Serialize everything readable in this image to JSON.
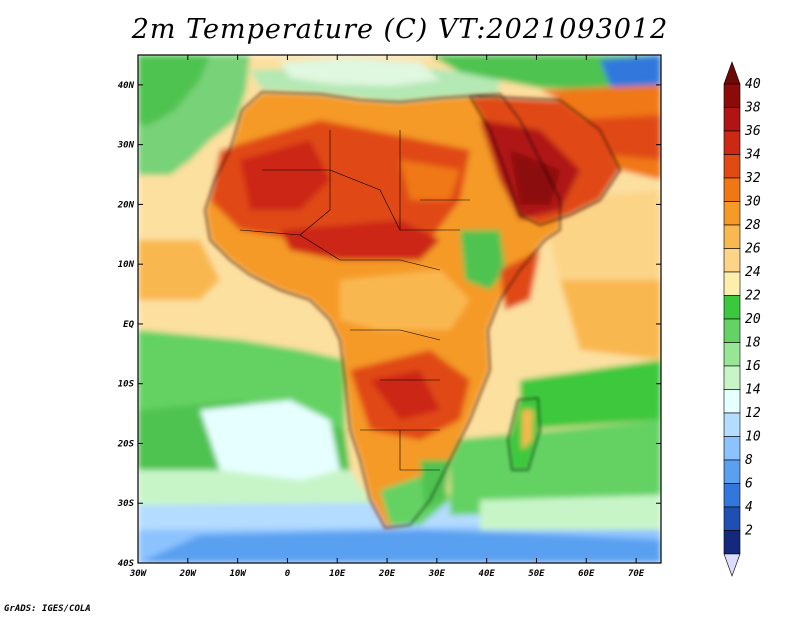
{
  "title": "2m Temperature (C) VT:2021093012",
  "footer": "GrADS: IGES/COLA",
  "map": {
    "extent": {
      "lon_min": -30,
      "lon_max": 75,
      "lat_min": -40,
      "lat_max": 45
    },
    "lat_ticks": [
      {
        "value": 40,
        "label": "40N"
      },
      {
        "value": 30,
        "label": "30N"
      },
      {
        "value": 20,
        "label": "20N"
      },
      {
        "value": 10,
        "label": "10N"
      },
      {
        "value": 0,
        "label": "EQ"
      },
      {
        "value": -10,
        "label": "10S"
      },
      {
        "value": -20,
        "label": "20S"
      },
      {
        "value": -30,
        "label": "30S"
      },
      {
        "value": -40,
        "label": "40S"
      }
    ],
    "lon_ticks": [
      {
        "value": -30,
        "label": "30W"
      },
      {
        "value": -20,
        "label": "20W"
      },
      {
        "value": -10,
        "label": "10W"
      },
      {
        "value": 0,
        "label": "0"
      },
      {
        "value": 10,
        "label": "10E"
      },
      {
        "value": 20,
        "label": "20E"
      },
      {
        "value": 30,
        "label": "30E"
      },
      {
        "value": 40,
        "label": "40E"
      },
      {
        "value": 50,
        "label": "50E"
      },
      {
        "value": 60,
        "label": "60E"
      },
      {
        "value": 70,
        "label": "70E"
      }
    ]
  },
  "colorbar": {
    "labels": [
      "40",
      "38",
      "36",
      "34",
      "32",
      "30",
      "28",
      "26",
      "24",
      "22",
      "20",
      "18",
      "16",
      "14",
      "12",
      "10",
      "8",
      "6",
      "4",
      "2"
    ],
    "colors": [
      "#8c0a0a",
      "#b01414",
      "#cc2814",
      "#e04a14",
      "#f07814",
      "#f59a28",
      "#f9b850",
      "#fcd488",
      "#fdeeac",
      "#3cc83c",
      "#64d264",
      "#96e696",
      "#c8f5c8",
      "#e6ffff",
      "#b4dcff",
      "#8cc3ff",
      "#5aa0f0",
      "#3278dc",
      "#1e50b4",
      "#14287d"
    ],
    "max_arrow_color": "#700808",
    "min_arrow_color": "#dcdcff"
  }
}
